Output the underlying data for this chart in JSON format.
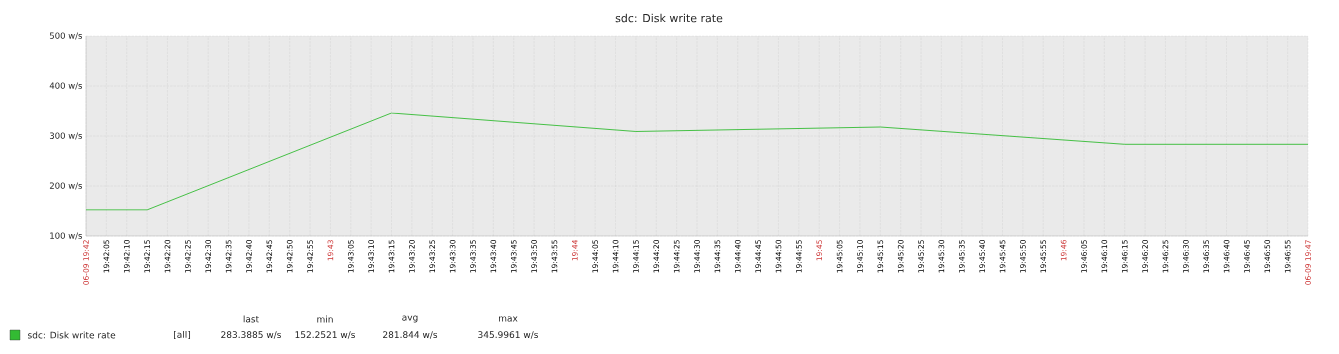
{
  "chart_data": {
    "type": "line",
    "title": "sdc: Disk write rate",
    "x": [
      19.7,
      19.704167,
      19.720833,
      19.7375,
      19.754167,
      19.770833,
      19.783333
    ],
    "series": [
      {
        "name": "sdc: Disk write rate",
        "color": "#33bb33",
        "values": [
          152.25,
          152.25,
          346,
          309,
          318,
          283.4,
          283.4
        ]
      }
    ],
    "xlim": [
      19.7,
      19.783333
    ],
    "ylim": [
      100,
      500
    ],
    "yticks": [
      {
        "value": 100,
        "label": "100 w/s"
      },
      {
        "value": 200,
        "label": "200 w/s"
      },
      {
        "value": 300,
        "label": "300 w/s"
      },
      {
        "value": 400,
        "label": "400 w/s"
      },
      {
        "value": 500,
        "label": "500 w/s"
      }
    ],
    "xticks": [
      {
        "value": 19.7,
        "label": "06-09 19:42"
      },
      {
        "value": 19.701389,
        "label": "19:42:05"
      },
      {
        "value": 19.702778,
        "label": "19:42:10"
      },
      {
        "value": 19.704167,
        "label": "19:42:15"
      },
      {
        "value": 19.705556,
        "label": "19:42:20"
      },
      {
        "value": 19.706944,
        "label": "19:42:25"
      },
      {
        "value": 19.708333,
        "label": "19:42:30"
      },
      {
        "value": 19.709722,
        "label": "19:42:35"
      },
      {
        "value": 19.711111,
        "label": "19:42:40"
      },
      {
        "value": 19.7125,
        "label": "19:42:45"
      },
      {
        "value": 19.713889,
        "label": "19:42:50"
      },
      {
        "value": 19.715278,
        "label": "19:42:55"
      },
      {
        "value": 19.716667,
        "label": "19:43"
      },
      {
        "value": 19.718056,
        "label": "19:43:05"
      },
      {
        "value": 19.719444,
        "label": "19:43:10"
      },
      {
        "value": 19.720833,
        "label": "19:43:15"
      },
      {
        "value": 19.722222,
        "label": "19:43:20"
      },
      {
        "value": 19.723611,
        "label": "19:43:25"
      },
      {
        "value": 19.725,
        "label": "19:43:30"
      },
      {
        "value": 19.726389,
        "label": "19:43:35"
      },
      {
        "value": 19.727778,
        "label": "19:43:40"
      },
      {
        "value": 19.729167,
        "label": "19:43:45"
      },
      {
        "value": 19.730556,
        "label": "19:43:50"
      },
      {
        "value": 19.731944,
        "label": "19:43:55"
      },
      {
        "value": 19.733333,
        "label": "19:44"
      },
      {
        "value": 19.734722,
        "label": "19:44:05"
      },
      {
        "value": 19.736111,
        "label": "19:44:10"
      },
      {
        "value": 19.7375,
        "label": "19:44:15"
      },
      {
        "value": 19.738889,
        "label": "19:44:20"
      },
      {
        "value": 19.740278,
        "label": "19:44:25"
      },
      {
        "value": 19.741667,
        "label": "19:44:30"
      },
      {
        "value": 19.743056,
        "label": "19:44:35"
      },
      {
        "value": 19.744444,
        "label": "19:44:40"
      },
      {
        "value": 19.745833,
        "label": "19:44:45"
      },
      {
        "value": 19.747222,
        "label": "19:44:50"
      },
      {
        "value": 19.748611,
        "label": "19:44:55"
      },
      {
        "value": 19.75,
        "label": "19:45"
      },
      {
        "value": 19.751389,
        "label": "19:45:05"
      },
      {
        "value": 19.752778,
        "label": "19:45:10"
      },
      {
        "value": 19.754167,
        "label": "19:45:15"
      },
      {
        "value": 19.755556,
        "label": "19:45:20"
      },
      {
        "value": 19.756944,
        "label": "19:45:25"
      },
      {
        "value": 19.758333,
        "label": "19:45:30"
      },
      {
        "value": 19.759722,
        "label": "19:45:35"
      },
      {
        "value": 19.761111,
        "label": "19:45:40"
      },
      {
        "value": 19.7625,
        "label": "19:45:45"
      },
      {
        "value": 19.763889,
        "label": "19:45:50"
      },
      {
        "value": 19.765278,
        "label": "19:45:55"
      },
      {
        "value": 19.766667,
        "label": "19:46"
      },
      {
        "value": 19.768056,
        "label": "19:46:05"
      },
      {
        "value": 19.769444,
        "label": "19:46:10"
      },
      {
        "value": 19.770833,
        "label": "19:46:15"
      },
      {
        "value": 19.772222,
        "label": "19:46:20"
      },
      {
        "value": 19.773611,
        "label": "19:46:25"
      },
      {
        "value": 19.775,
        "label": "19:46:30"
      },
      {
        "value": 19.776389,
        "label": "19:46:35"
      },
      {
        "value": 19.777778,
        "label": "19:46:40"
      },
      {
        "value": 19.779167,
        "label": "19:46:45"
      },
      {
        "value": 19.780556,
        "label": "19:46:50"
      },
      {
        "value": 19.781944,
        "label": "19:46:55"
      },
      {
        "value": 19.783333,
        "label": "06-09 19:47"
      }
    ],
    "grid": true,
    "legend": "bottom left",
    "marker": "none",
    "line_style": "solid",
    "annotations": [
      "[all]",
      "last",
      "min",
      "avg",
      "max",
      "283.3885 w/s",
      "152.2521 w/s",
      "281.844 w/s",
      "345.9961 w/s"
    ]
  }
}
